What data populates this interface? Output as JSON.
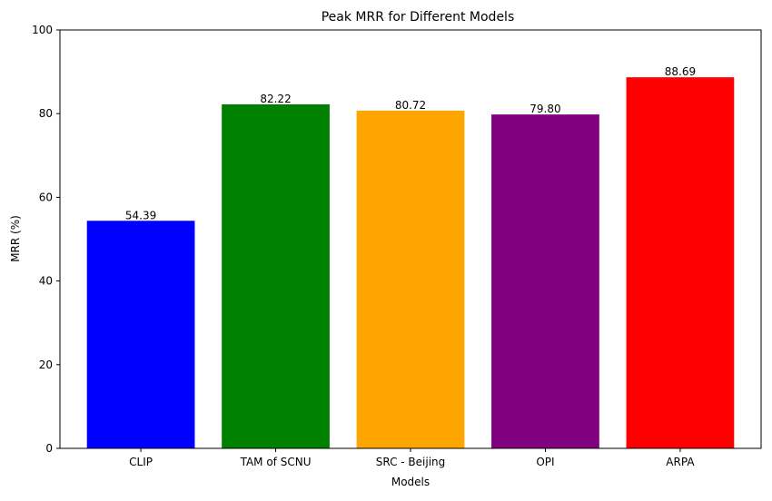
{
  "chart_data": {
    "type": "bar",
    "title": "Peak MRR for Different Models",
    "xlabel": "Models",
    "ylabel": "MRR (%)",
    "categories": [
      "CLIP",
      "TAM of SCNU",
      "SRC - Beijing",
      "OPI",
      "ARPA"
    ],
    "values": [
      54.39,
      82.22,
      80.72,
      79.8,
      88.69
    ],
    "value_labels": [
      "54.39",
      "82.22",
      "80.72",
      "79.80",
      "88.69"
    ],
    "colors": [
      "#0000ff",
      "#008000",
      "#ffa500",
      "#800080",
      "#ff0000"
    ],
    "ylim": [
      0,
      100
    ],
    "yticks": [
      0,
      20,
      40,
      60,
      80,
      100
    ],
    "grid": false,
    "legend": "none"
  }
}
